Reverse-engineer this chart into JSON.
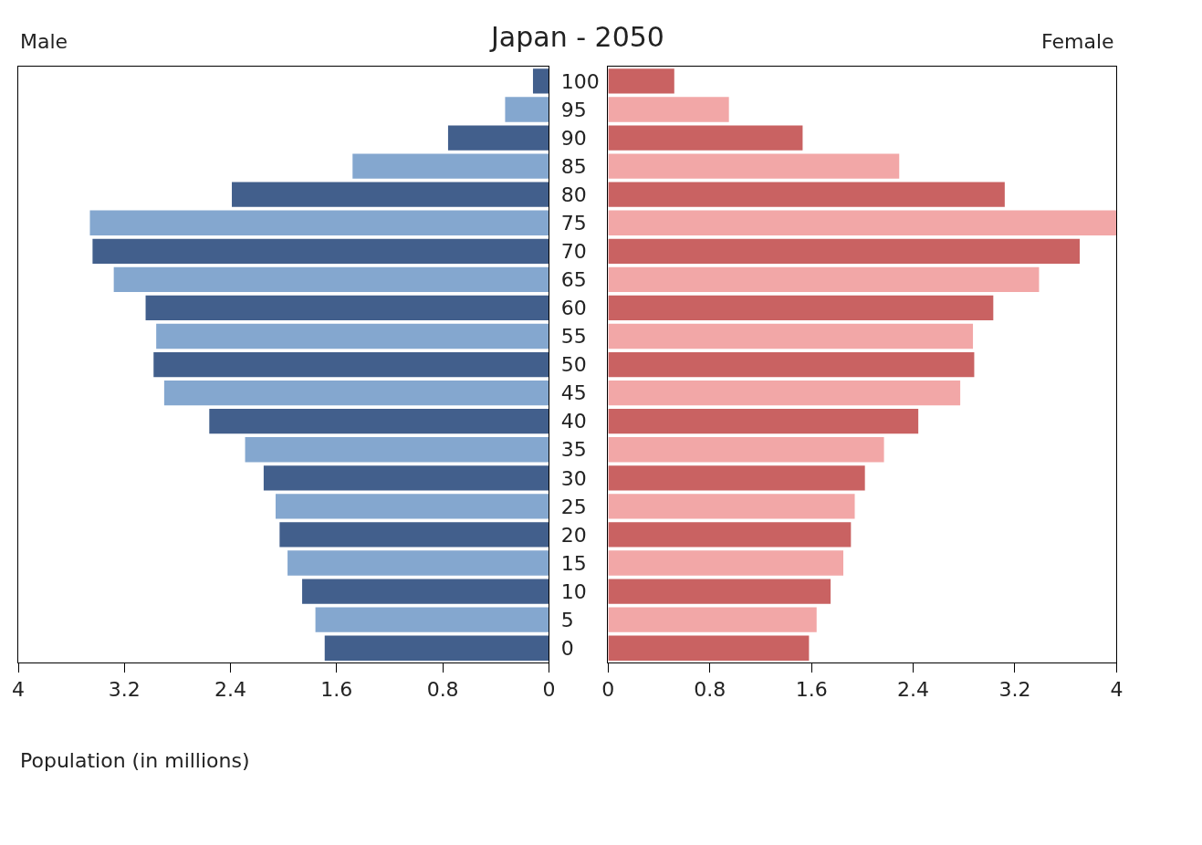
{
  "chart_data": [
    {
      "type": "bar",
      "orientation": "horizontal",
      "title": "Male",
      "annotations": [
        "Japan - 2050"
      ],
      "xlabel": "Population (in millions)",
      "categories": [
        "100",
        "95",
        "90",
        "85",
        "80",
        "75",
        "70",
        "65",
        "60",
        "55",
        "50",
        "45",
        "40",
        "35",
        "30",
        "25",
        "20",
        "15",
        "10",
        "5",
        "0"
      ],
      "values": [
        0.12,
        0.33,
        0.76,
        1.48,
        2.39,
        3.46,
        3.44,
        3.28,
        3.04,
        2.96,
        2.98,
        2.9,
        2.56,
        2.29,
        2.15,
        2.06,
        2.03,
        1.97,
        1.86,
        1.76,
        1.69
      ],
      "colors": [
        "#425f8c",
        "#84a7cf",
        "#425f8c",
        "#84a7cf",
        "#425f8c",
        "#84a7cf",
        "#425f8c",
        "#84a7cf",
        "#425f8c",
        "#84a7cf",
        "#425f8c",
        "#84a7cf",
        "#425f8c",
        "#84a7cf",
        "#425f8c",
        "#84a7cf",
        "#425f8c",
        "#84a7cf",
        "#425f8c",
        "#84a7cf",
        "#425f8c"
      ],
      "xlim": [
        4,
        0
      ],
      "xticks": [
        4,
        3.2,
        2.4,
        1.6,
        0.8,
        0
      ]
    },
    {
      "type": "bar",
      "orientation": "horizontal",
      "title": "Female",
      "tick_labels": "x",
      "categories": [
        "100",
        "95",
        "90",
        "85",
        "80",
        "75",
        "70",
        "65",
        "60",
        "55",
        "50",
        "45",
        "40",
        "35",
        "30",
        "25",
        "20",
        "15",
        "10",
        "5",
        "0"
      ],
      "values": [
        0.52,
        0.95,
        1.53,
        2.29,
        3.12,
        4.0,
        3.71,
        3.39,
        3.03,
        2.87,
        2.88,
        2.77,
        2.44,
        2.17,
        2.02,
        1.94,
        1.91,
        1.85,
        1.75,
        1.64,
        1.58
      ],
      "colors": [
        "#c96262",
        "#f2a7a7",
        "#c96262",
        "#f2a7a7",
        "#c96262",
        "#f2a7a7",
        "#c96262",
        "#f2a7a7",
        "#c96262",
        "#f2a7a7",
        "#c96262",
        "#f2a7a7",
        "#c96262",
        "#f2a7a7",
        "#c96262",
        "#f2a7a7",
        "#c96262",
        "#f2a7a7",
        "#c96262",
        "#f2a7a7",
        "#c96262"
      ],
      "xlim": [
        0,
        4
      ],
      "xticks": [
        0,
        0.8,
        1.6,
        2.4,
        3.2,
        4
      ]
    }
  ]
}
